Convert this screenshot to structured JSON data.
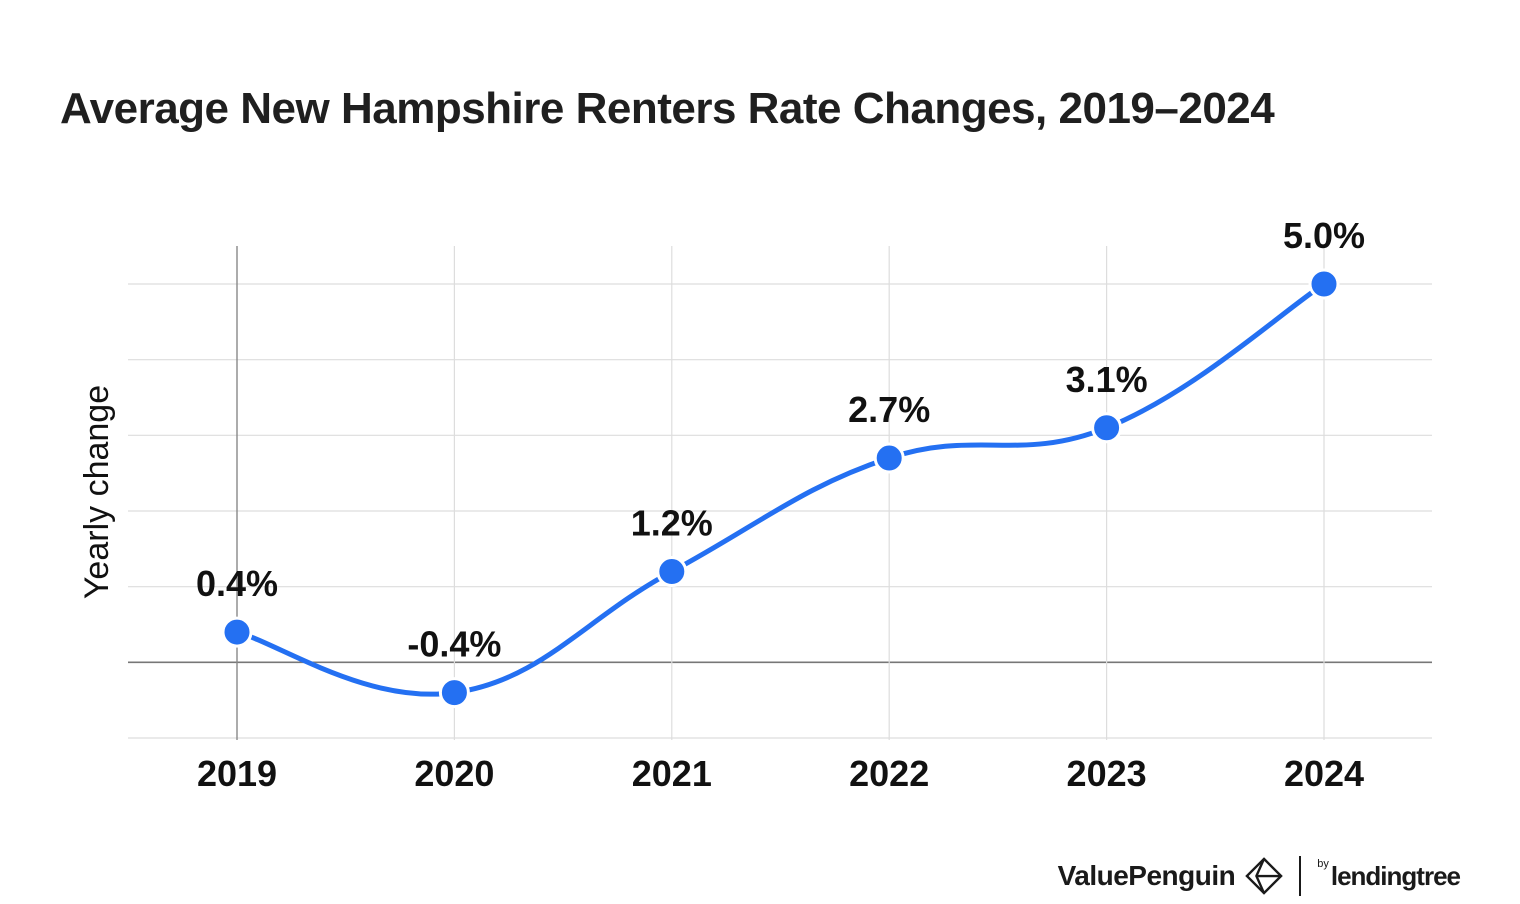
{
  "chart_data": {
    "type": "line",
    "title": "Average New Hampshire Renters Rate Changes, 2019–2024",
    "ylabel": "Yearly change",
    "xlabel": "",
    "categories": [
      "2019",
      "2020",
      "2021",
      "2022",
      "2023",
      "2024"
    ],
    "series": [
      {
        "values": [
          0.4,
          -0.4,
          1.2,
          2.7,
          3.1,
          5.0
        ],
        "labels": [
          "0.4%",
          "-0.4%",
          "1.2%",
          "2.7%",
          "3.1%",
          "5.0%"
        ]
      }
    ],
    "ylim": [
      -1,
      5
    ],
    "grid": true,
    "line_color": "#2470f2"
  },
  "branding": {
    "brand_name": "ValuePenguin",
    "by_text": "by",
    "partner_name": "lendingtree"
  }
}
